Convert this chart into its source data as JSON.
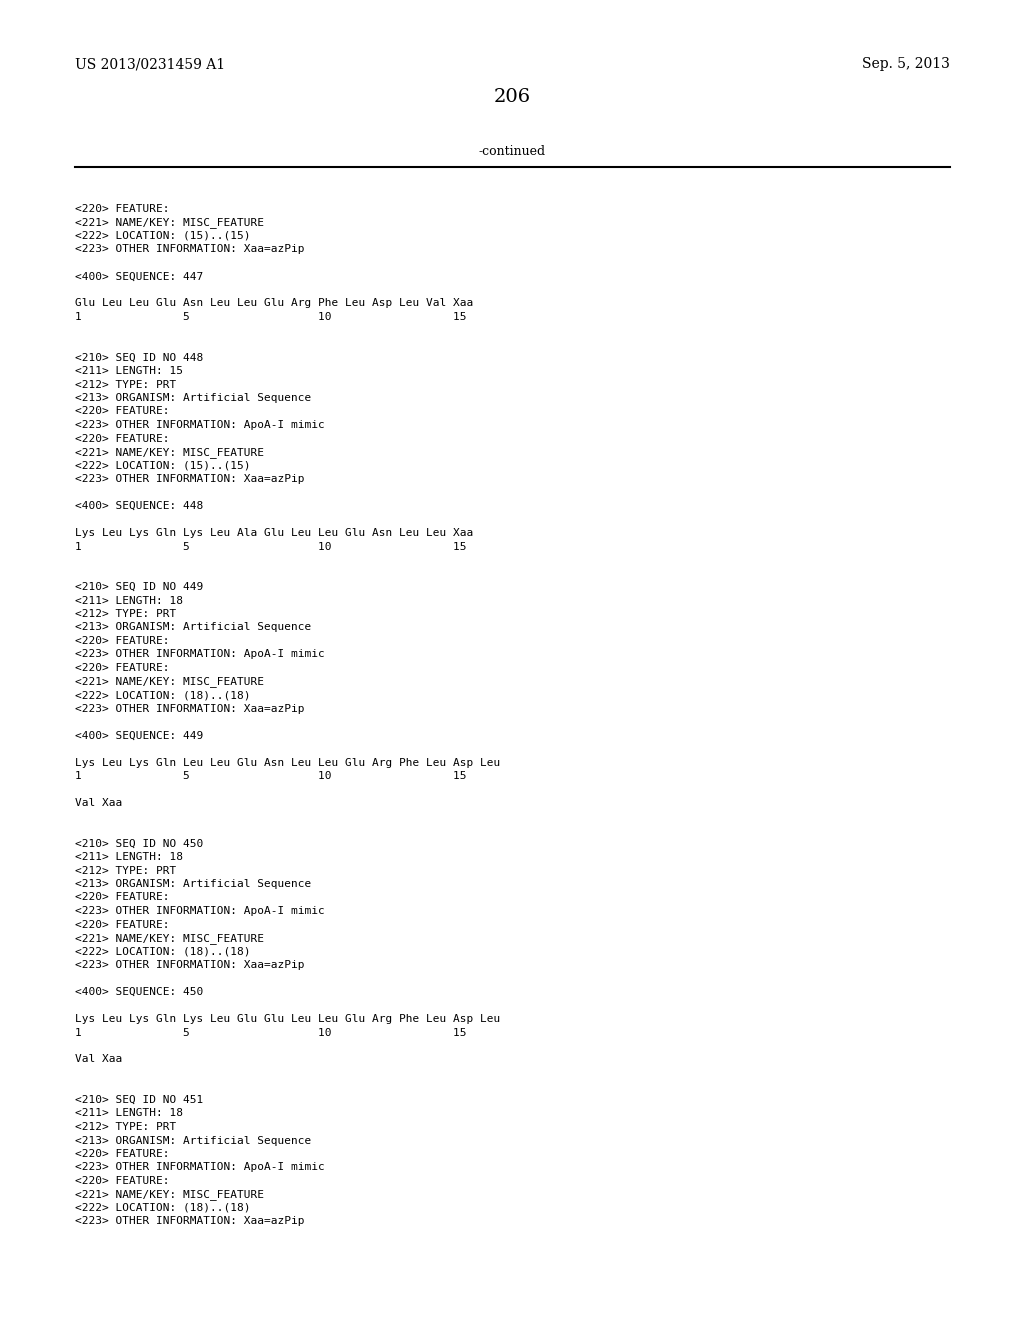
{
  "bg_color": "#ffffff",
  "header_left": "US 2013/0231459 A1",
  "header_right": "Sep. 5, 2013",
  "page_number": "206",
  "continued_label": "-continued",
  "figsize": [
    10.24,
    13.2
  ],
  "dpi": 100,
  "content_lines": [
    "<220> FEATURE:",
    "<221> NAME/KEY: MISC_FEATURE",
    "<222> LOCATION: (15)..(15)",
    "<223> OTHER INFORMATION: Xaa=azPip",
    "",
    "<400> SEQUENCE: 447",
    "",
    "Glu Leu Leu Glu Asn Leu Leu Glu Arg Phe Leu Asp Leu Val Xaa",
    "1               5                   10                  15",
    "",
    "",
    "<210> SEQ ID NO 448",
    "<211> LENGTH: 15",
    "<212> TYPE: PRT",
    "<213> ORGANISM: Artificial Sequence",
    "<220> FEATURE:",
    "<223> OTHER INFORMATION: ApoA-I mimic",
    "<220> FEATURE:",
    "<221> NAME/KEY: MISC_FEATURE",
    "<222> LOCATION: (15)..(15)",
    "<223> OTHER INFORMATION: Xaa=azPip",
    "",
    "<400> SEQUENCE: 448",
    "",
    "Lys Leu Lys Gln Lys Leu Ala Glu Leu Leu Glu Asn Leu Leu Xaa",
    "1               5                   10                  15",
    "",
    "",
    "<210> SEQ ID NO 449",
    "<211> LENGTH: 18",
    "<212> TYPE: PRT",
    "<213> ORGANISM: Artificial Sequence",
    "<220> FEATURE:",
    "<223> OTHER INFORMATION: ApoA-I mimic",
    "<220> FEATURE:",
    "<221> NAME/KEY: MISC_FEATURE",
    "<222> LOCATION: (18)..(18)",
    "<223> OTHER INFORMATION: Xaa=azPip",
    "",
    "<400> SEQUENCE: 449",
    "",
    "Lys Leu Lys Gln Leu Leu Glu Asn Leu Leu Glu Arg Phe Leu Asp Leu",
    "1               5                   10                  15",
    "",
    "Val Xaa",
    "",
    "",
    "<210> SEQ ID NO 450",
    "<211> LENGTH: 18",
    "<212> TYPE: PRT",
    "<213> ORGANISM: Artificial Sequence",
    "<220> FEATURE:",
    "<223> OTHER INFORMATION: ApoA-I mimic",
    "<220> FEATURE:",
    "<221> NAME/KEY: MISC_FEATURE",
    "<222> LOCATION: (18)..(18)",
    "<223> OTHER INFORMATION: Xaa=azPip",
    "",
    "<400> SEQUENCE: 450",
    "",
    "Lys Leu Lys Gln Lys Leu Glu Glu Leu Leu Glu Arg Phe Leu Asp Leu",
    "1               5                   10                  15",
    "",
    "Val Xaa",
    "",
    "",
    "<210> SEQ ID NO 451",
    "<211> LENGTH: 18",
    "<212> TYPE: PRT",
    "<213> ORGANISM: Artificial Sequence",
    "<220> FEATURE:",
    "<223> OTHER INFORMATION: ApoA-I mimic",
    "<220> FEATURE:",
    "<221> NAME/KEY: MISC_FEATURE",
    "<222> LOCATION: (18)..(18)",
    "<223> OTHER INFORMATION: Xaa=azPip"
  ]
}
